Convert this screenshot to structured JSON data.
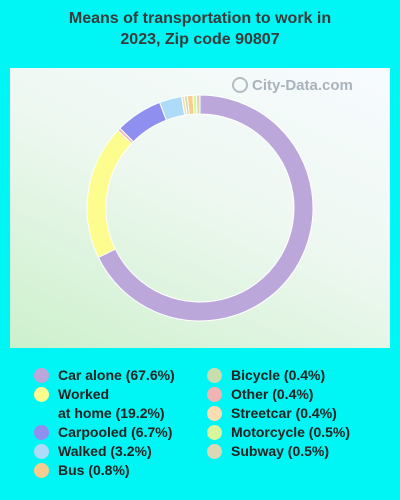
{
  "title_lines": [
    "Means of transportation to work in",
    "2023, Zip code 90807"
  ],
  "watermark": "City-Data.com",
  "chart_data": {
    "type": "pie",
    "style": "donut",
    "title": "Means of transportation to work in 2023, Zip code 90807",
    "unit": "%",
    "legend_placement": "bottom",
    "slices": [
      {
        "label": "Car alone",
        "value": 67.6,
        "color": "#bba7da"
      },
      {
        "label": "Worked at home",
        "value": 19.2,
        "color": "#fdfc8e"
      },
      {
        "label": "Carpooled",
        "value": 6.7,
        "color": "#8f8ff0"
      },
      {
        "label": "Walked",
        "value": 3.2,
        "color": "#aedcf8"
      },
      {
        "label": "Bus",
        "value": 0.8,
        "color": "#f6cd8c"
      },
      {
        "label": "Bicycle",
        "value": 0.4,
        "color": "#c9dcae"
      },
      {
        "label": "Other",
        "value": 0.4,
        "color": "#f2b3b3"
      },
      {
        "label": "Streetcar",
        "value": 0.4,
        "color": "#fbdcb0"
      },
      {
        "label": "Motorcycle",
        "value": 0.5,
        "color": "#d9f79a"
      },
      {
        "label": "Subway",
        "value": 0.5,
        "color": "#ddd8b4"
      }
    ],
    "draw_order": [
      "Car alone",
      "Worked at home",
      "Other",
      "Carpooled",
      "Walked",
      "Streetcar",
      "Bicycle",
      "Bus",
      "Motorcycle",
      "Subway"
    ]
  },
  "legend": {
    "left": [
      {
        "label": "Car alone (67.6%)",
        "color": "#bba7da"
      },
      {
        "label": "Worked\nat home (19.2%)",
        "color": "#fdfc8e"
      },
      {
        "label": "Carpooled (6.7%)",
        "color": "#8f8ff0"
      },
      {
        "label": "Walked (3.2%)",
        "color": "#aedcf8"
      },
      {
        "label": "Bus (0.8%)",
        "color": "#f6cd8c"
      }
    ],
    "right": [
      {
        "label": "Bicycle (0.4%)",
        "color": "#c9dcae"
      },
      {
        "label": "Other (0.4%)",
        "color": "#f2b3b3"
      },
      {
        "label": "Streetcar (0.4%)",
        "color": "#fbdcb0"
      },
      {
        "label": "Motorcycle (0.5%)",
        "color": "#d9f79a"
      },
      {
        "label": "Subway (0.5%)",
        "color": "#ddd8b4"
      }
    ]
  }
}
